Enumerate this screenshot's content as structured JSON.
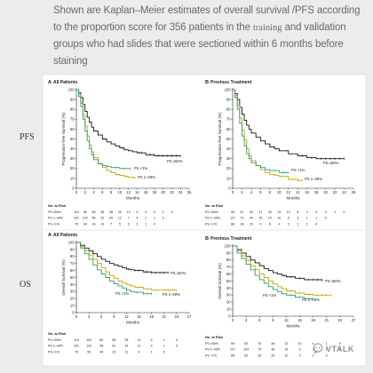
{
  "caption": {
    "line1": "Shown are Kaplan–Meier estimates of overall survival /PFS according",
    "line2_start": "to the proportion score for 356 patients in the ",
    "line2_emph": "training",
    "line2_end": " and validation",
    "line3": "groups who had slides that were sectioned within 6 months before",
    "line4": "staining"
  },
  "row_labels": {
    "pfs": "PFS",
    "os": "OS"
  },
  "watermark": "VTALK",
  "icons": {
    "watermark": "chat-bubble-icon"
  },
  "colors": {
    "ps_high": "#111111",
    "ps_mid": "#c9a300",
    "ps_low": "#2f9a72"
  },
  "chart_data": [
    {
      "type": "line",
      "step": true,
      "panel": "A",
      "title": "All Patients",
      "ylabel": "Progression-free Survival (%)",
      "xlabel": "Months",
      "xlim": [
        0,
        26
      ],
      "ylim": [
        0,
        100
      ],
      "x_ticks": [
        0,
        2,
        4,
        6,
        8,
        10,
        12,
        14,
        16,
        18,
        20,
        22,
        24,
        26
      ],
      "y_ticks": [
        0,
        10,
        20,
        30,
        40,
        50,
        60,
        70,
        80,
        90,
        100
      ],
      "series": [
        {
          "name": "PS ≥50%",
          "color": "#111111",
          "x": [
            0,
            0.5,
            1,
            1.5,
            2,
            2.5,
            3,
            3.5,
            4,
            5,
            6,
            7,
            8,
            9,
            10,
            11,
            12,
            13,
            14,
            16,
            18,
            24
          ],
          "y": [
            100,
            97,
            92,
            85,
            78,
            72,
            67,
            62,
            58,
            54,
            50,
            47,
            45,
            43,
            41,
            39,
            38,
            37,
            36,
            34,
            33,
            33
          ],
          "censored": [
            14.5,
            15,
            17,
            19,
            20,
            21,
            22,
            23,
            24
          ]
        },
        {
          "name": "PS 1–49%",
          "color": "#c9a300",
          "x": [
            0,
            0.5,
            1,
            1.5,
            2,
            2.5,
            3,
            3.5,
            4,
            5,
            6,
            7,
            8,
            9,
            10,
            11,
            12,
            13.5
          ],
          "y": [
            100,
            95,
            86,
            74,
            63,
            53,
            44,
            37,
            31,
            25,
            21,
            18,
            16,
            14,
            13,
            12,
            11,
            10
          ],
          "censored": [
            9.5,
            11.5,
            13,
            13.5
          ]
        },
        {
          "name": "PS <1%",
          "color": "#2f9a72",
          "x": [
            0,
            0.5,
            1,
            1.5,
            2,
            2.5,
            3,
            3.5,
            4,
            5,
            6,
            7,
            8,
            10,
            12.5
          ],
          "y": [
            100,
            93,
            83,
            70,
            58,
            48,
            40,
            34,
            29,
            25,
            23,
            22,
            21,
            20,
            20
          ],
          "censored": [
            9,
            11,
            12.5
          ]
        }
      ],
      "risk_table": {
        "header": "No. at Risk",
        "rows": [
          {
            "label": "PS ≥50%",
            "values": [
              119,
              86,
              66,
              48,
              38,
              20,
              13,
              4,
              3,
              3,
              1,
              0
            ]
          },
          {
            "label": "PS 1–49%",
            "values": [
              161,
              102,
              56,
              32,
              20,
              12,
              7,
              4,
              2,
              1,
              0
            ]
          },
          {
            "label": "PS <1%",
            "values": [
              76,
              44,
              18,
              10,
              7,
              5,
              3,
              2,
              1,
              0
            ]
          }
        ]
      }
    },
    {
      "type": "line",
      "step": true,
      "panel": "B",
      "title": "Previous Treatment",
      "ylabel": "Progression-free Survival (%)",
      "xlabel": "Months",
      "xlim": [
        0,
        26
      ],
      "ylim": [
        0,
        100
      ],
      "x_ticks": [
        0,
        2,
        4,
        6,
        8,
        10,
        12,
        14,
        16,
        18,
        20,
        22,
        24,
        26
      ],
      "y_ticks": [
        0,
        10,
        20,
        30,
        40,
        50,
        60,
        70,
        80,
        90,
        100
      ],
      "series": [
        {
          "name": "PS ≥50%",
          "color": "#111111",
          "x": [
            0,
            0.5,
            1,
            1.5,
            2,
            2.5,
            3,
            3.5,
            4,
            5,
            6,
            7,
            8,
            9,
            10,
            12,
            14,
            16,
            18,
            24
          ],
          "y": [
            100,
            96,
            90,
            82,
            75,
            69,
            64,
            60,
            56,
            52,
            48,
            45,
            42,
            40,
            38,
            35,
            33,
            31,
            30,
            30
          ],
          "censored": [
            15,
            17,
            19,
            20,
            21,
            22,
            23,
            24
          ]
        },
        {
          "name": "PS 1–49%",
          "color": "#c9a300",
          "x": [
            0,
            0.5,
            1,
            1.5,
            2,
            2.5,
            3,
            3.5,
            4,
            5,
            6,
            7,
            8,
            9,
            10,
            12,
            14,
            15
          ],
          "y": [
            100,
            94,
            84,
            71,
            59,
            49,
            40,
            33,
            28,
            23,
            19,
            16,
            14,
            13,
            12,
            9,
            8,
            8
          ],
          "censored": [
            10.5,
            13,
            15
          ]
        },
        {
          "name": "PS <1%",
          "color": "#2f9a72",
          "x": [
            0,
            0.5,
            1,
            1.5,
            2,
            2.5,
            3,
            3.5,
            4,
            5,
            6,
            7,
            8,
            10,
            12
          ],
          "y": [
            100,
            92,
            80,
            66,
            53,
            43,
            35,
            30,
            26,
            23,
            21,
            19,
            18,
            16,
            16
          ],
          "censored": [
            9,
            11,
            12
          ]
        }
      ],
      "risk_table": {
        "header": "No. at Risk",
        "rows": [
          {
            "label": "PS ≥50%",
            "values": [
              99,
              67,
              53,
              37,
              30,
              19,
              12,
              8,
              4,
              3,
              3,
              1,
              0
            ]
          },
          {
            "label": "PS 1–49%",
            "values": [
              127,
              79,
              44,
              26,
              15,
              10,
              5,
              3,
              1,
              1,
              0
            ]
          },
          {
            "label": "PS <1%",
            "values": [
              68,
              38,
              15,
              9,
              6,
              4,
              2,
              1,
              1,
              0
            ]
          }
        ]
      }
    },
    {
      "type": "line",
      "step": true,
      "panel": "A",
      "title": "All Patients",
      "ylabel": "Overall Survival (%)",
      "xlabel": "Months",
      "xlim": [
        0,
        27
      ],
      "ylim": [
        0,
        100
      ],
      "x_ticks": [
        0,
        3,
        6,
        9,
        12,
        15,
        18,
        21,
        24,
        27
      ],
      "y_ticks": [
        0,
        10,
        20,
        30,
        40,
        50,
        60,
        70,
        80,
        90,
        100
      ],
      "series": [
        {
          "name": "PS ≥50%",
          "color": "#111111",
          "x": [
            0,
            1,
            2,
            3,
            4,
            5,
            6,
            7,
            8,
            9,
            10,
            11,
            12,
            13,
            14,
            16,
            18,
            22
          ],
          "y": [
            100,
            96,
            92,
            88,
            84,
            80,
            76,
            73,
            70,
            68,
            66,
            64,
            62,
            61,
            60,
            58,
            57,
            57
          ],
          "censored": [
            12.5,
            14,
            15,
            16.5,
            17,
            18,
            19,
            20,
            21,
            22
          ]
        },
        {
          "name": "PS 1–49%",
          "color": "#c9a300",
          "x": [
            0,
            1,
            2,
            3,
            4,
            5,
            6,
            7,
            8,
            9,
            10,
            11,
            12,
            13,
            14,
            16,
            18,
            24
          ],
          "y": [
            100,
            94,
            88,
            82,
            76,
            70,
            64,
            58,
            53,
            49,
            45,
            42,
            40,
            38,
            36,
            34,
            32,
            32
          ],
          "censored": [
            13,
            15,
            17,
            19,
            21,
            22,
            23,
            24
          ]
        },
        {
          "name": "PS <1%",
          "color": "#2f9a72",
          "x": [
            0,
            1,
            2,
            3,
            4,
            5,
            6,
            7,
            8,
            9,
            10,
            11,
            12,
            13,
            14,
            16,
            18
          ],
          "y": [
            100,
            92,
            84,
            76,
            68,
            61,
            55,
            50,
            45,
            41,
            38,
            35,
            32,
            30,
            29,
            27,
            27
          ],
          "censored": [
            12,
            14.5,
            16,
            17,
            18
          ]
        }
      ],
      "risk_table": {
        "header": "No. at Risk",
        "rows": [
          {
            "label": "PS ≥50%",
            "values": [
              119,
              102,
              85,
              56,
              28,
              12,
              5,
              1,
              0
            ]
          },
          {
            "label": "PS 1–49%",
            "values": [
              161,
              133,
              98,
              61,
              31,
              11,
              4,
              1,
              0
            ]
          },
          {
            "label": "PS <1%",
            "values": [
              76,
              59,
              40,
              23,
              11,
              4,
              1,
              0
            ]
          }
        ]
      }
    },
    {
      "type": "line",
      "step": true,
      "panel": "B",
      "title": "Previous Treatment",
      "ylabel": "Overall Survival (%)",
      "xlabel": "Months",
      "xlim": [
        0,
        27
      ],
      "ylim": [
        0,
        100
      ],
      "x_ticks": [
        0,
        3,
        6,
        9,
        12,
        15,
        18,
        21,
        24,
        27
      ],
      "y_ticks": [
        0,
        10,
        20,
        30,
        40,
        50,
        60,
        70,
        80,
        90,
        100
      ],
      "series": [
        {
          "name": "PS ≥50%",
          "color": "#111111",
          "x": [
            0,
            1,
            2,
            3,
            4,
            5,
            6,
            7,
            8,
            9,
            10,
            11,
            12,
            14,
            16,
            20
          ],
          "y": [
            100,
            95,
            90,
            85,
            80,
            76,
            72,
            68,
            65,
            62,
            60,
            58,
            56,
            54,
            52,
            51
          ],
          "censored": [
            11.5,
            13,
            15,
            17,
            18,
            19,
            20
          ]
        },
        {
          "name": "PS 1–49%",
          "color": "#c9a300",
          "x": [
            0,
            1,
            2,
            3,
            4,
            5,
            6,
            7,
            8,
            9,
            10,
            11,
            12,
            14,
            16,
            18,
            22
          ],
          "y": [
            100,
            93,
            86,
            79,
            72,
            66,
            60,
            55,
            50,
            46,
            42,
            39,
            36,
            33,
            31,
            30,
            30
          ],
          "censored": [
            13,
            15,
            17,
            19,
            20,
            21,
            22
          ]
        },
        {
          "name": "PS <1%",
          "color": "#2f9a72",
          "x": [
            0,
            1,
            2,
            3,
            4,
            5,
            6,
            7,
            8,
            9,
            10,
            11,
            12,
            14,
            16,
            18
          ],
          "y": [
            100,
            90,
            82,
            74,
            66,
            58,
            52,
            47,
            42,
            38,
            35,
            32,
            30,
            27,
            25,
            25
          ],
          "censored": [
            11,
            13,
            15,
            17,
            18
          ]
        }
      ],
      "risk_table": {
        "header": "No. at Risk",
        "rows": [
          {
            "label": "PS ≥50%",
            "values": [
              99,
              83,
              70,
              46,
              22,
              10,
              4,
              1,
              0
            ]
          },
          {
            "label": "PS 1–49%",
            "values": [
              127,
              104,
              75,
              46,
              24,
              9,
              3,
              1,
              0
            ]
          },
          {
            "label": "PS <1%",
            "values": [
              68,
              52,
              35,
              20,
              10,
              3,
              1,
              0
            ]
          }
        ]
      }
    }
  ]
}
